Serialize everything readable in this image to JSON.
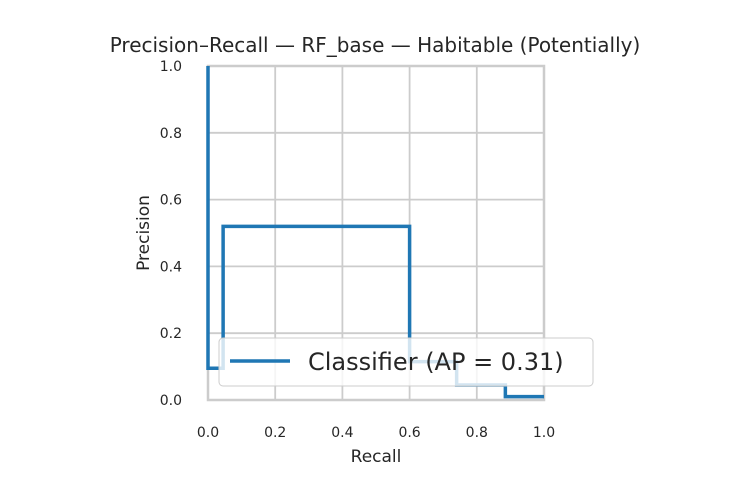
{
  "chart_data": {
    "type": "line",
    "title": "Precision–Recall — RF_base — Habitable (Potentially)",
    "xlabel": "Recall",
    "ylabel": "Precision",
    "xlim": [
      0,
      1
    ],
    "ylim": [
      0,
      1
    ],
    "xticks": [
      "0.0",
      "0.2",
      "0.4",
      "0.6",
      "0.8",
      "1.0"
    ],
    "yticks": [
      "0.0",
      "0.2",
      "0.4",
      "0.6",
      "0.8",
      "1.0"
    ],
    "grid": true,
    "legend_position": "lower-right",
    "series": [
      {
        "name": "Classifier (AP = 0.31)",
        "color": "#1f77b4",
        "step": true,
        "points": [
          [
            0.0,
            1.0
          ],
          [
            0.0,
            0.095
          ],
          [
            0.045,
            0.095
          ],
          [
            0.045,
            0.52
          ],
          [
            0.6,
            0.52
          ],
          [
            0.6,
            0.115
          ],
          [
            0.74,
            0.115
          ],
          [
            0.74,
            0.045
          ],
          [
            0.885,
            0.045
          ],
          [
            0.885,
            0.01
          ],
          [
            1.0,
            0.01
          ]
        ]
      }
    ]
  }
}
